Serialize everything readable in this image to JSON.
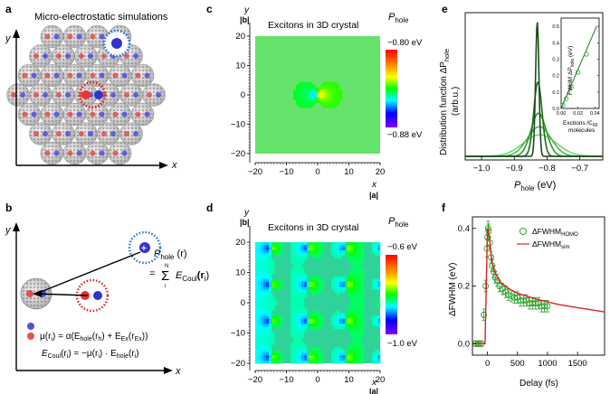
{
  "panels": {
    "a": {
      "label": "a",
      "title": "Micro-electrostatic simulations",
      "x_label": "x",
      "y_label": "y"
    },
    "b": {
      "label": "b",
      "p_hole_label": "P",
      "p_hole_sub": "hole",
      "p_hole_arg": " (r)",
      "sum_eq": "=",
      "sum_symbol": "Σ",
      "sum_top": "N",
      "sum_bottom": "i",
      "sum_term": "E",
      "sum_term_sub": "Coul",
      "sum_term_arg": "(r",
      "sum_term_arg_sub": "i",
      "sum_term_close": ")",
      "mu_eq": "μ(r",
      "mu_eq_i": "i",
      "mu_eq_rest": ") = α(E",
      "mu_eq_hole": "hole",
      "mu_eq_rh": "(r",
      "mu_eq_h": "h",
      "mu_eq_plus": ") + E",
      "mu_eq_ex": "Ex",
      "mu_eq_rex": "(r",
      "mu_eq_ex2": "Ex",
      "mu_eq_end": "))",
      "coul_eq_E": "E",
      "coul_eq_sub": "Coul",
      "coul_eq_mid": "(r",
      "coul_eq_i": "i",
      "coul_eq_rest": ") = −μ(r",
      "coul_eq_i2": "i",
      "coul_eq_dot": ") · E",
      "coul_eq_hole": "hole",
      "coul_eq_ri": "(r",
      "coul_eq_i3": "i",
      "coul_eq_close": ")",
      "x_label": "x",
      "y_label": "y"
    },
    "c": {
      "label": "c",
      "title": "Excitons in 3D crystal",
      "y_axis_label": "y",
      "y_axis_unit": "|b|",
      "x_axis_label": "x",
      "x_axis_unit": "|a|",
      "cbar_title": "P",
      "cbar_title_sub": "hole",
      "cbar_top": "−0.80 eV",
      "cbar_bottom": "−0.88 eV",
      "x_ticks": [
        "−20",
        "−10",
        "0",
        "10",
        "20"
      ],
      "y_ticks": [
        "20",
        "10",
        "0",
        "−10",
        "−20"
      ]
    },
    "d": {
      "label": "d",
      "title": "Excitons in 3D crystal",
      "y_axis_label": "y",
      "y_axis_unit": "|b|",
      "x_axis_label": "x",
      "x_axis_unit": "|a|",
      "cbar_title": "P",
      "cbar_title_sub": "hole",
      "cbar_top": "−0.6 eV",
      "cbar_bottom": "−1.0 eV",
      "x_ticks": [
        "−20",
        "−10",
        "0",
        "10",
        "20"
      ],
      "y_ticks": [
        "20",
        "10",
        "0",
        "−10",
        "−20"
      ]
    },
    "e": {
      "label": "e",
      "ylabel_main": "Distribution function ΔP",
      "ylabel_sub": "hole",
      "ylabel_unit": "(arb.u.)",
      "xlabel_main": "P",
      "xlabel_sub": "hole",
      "xlabel_unit": " (eV)",
      "x_ticks": [
        "−1.0",
        "−0.9",
        "−0.8",
        "−0.7"
      ],
      "inset_y_ticks": [
        "0.5",
        "0.4",
        "0.3",
        "0.2",
        "0.1",
        "0.0"
      ],
      "inset_x_ticks": [
        "0.00",
        "0.02",
        "0.04"
      ],
      "inset_ylabel": "FWHM ΔP",
      "inset_ylabel_sub": "hole",
      "inset_ylabel_unit": " (eV)",
      "inset_xlabel_1": "Excitons /C",
      "inset_xlabel_sub": "60",
      "inset_xlabel_2": "molecules"
    },
    "f": {
      "label": "f",
      "ylabel": "ΔFWHM (eV)",
      "xlabel": "Delay (fs)",
      "y_ticks": [
        "0.4",
        "0.2",
        "0.0"
      ],
      "x_ticks": [
        "0",
        "500",
        "1000",
        "1500"
      ],
      "legend_1": "ΔFWHM",
      "legend_1_sub": "HOMO",
      "legend_2": "ΔFWHM",
      "legend_2_sub": "sim"
    }
  },
  "chart_data": [
    {
      "type": "line",
      "panel": "e",
      "xlim": [
        -1.05,
        -0.63
      ],
      "series": [
        {
          "center": -0.83,
          "fwhm": 0.012,
          "amp": 1.0,
          "color": "#1a4d1a"
        },
        {
          "center": -0.828,
          "fwhm": 0.03,
          "amp": 0.55,
          "color": "#206b20"
        },
        {
          "center": -0.826,
          "fwhm": 0.055,
          "amp": 0.32,
          "color": "#2f9a2f"
        },
        {
          "center": -0.824,
          "fwhm": 0.085,
          "amp": 0.22,
          "color": "#4cba4c"
        },
        {
          "center": -0.822,
          "fwhm": 0.12,
          "amp": 0.16,
          "color": "#77d477"
        }
      ],
      "inset": {
        "type": "scatter",
        "xlim": [
          0,
          0.045
        ],
        "ylim": [
          0,
          0.55
        ],
        "points_x": [
          0.002,
          0.006,
          0.012,
          0.02,
          0.03
        ],
        "points_y": [
          0.02,
          0.06,
          0.13,
          0.22,
          0.33
        ],
        "fit": [
          [
            0,
            0
          ],
          [
            0.042,
            0.5
          ]
        ]
      }
    },
    {
      "type": "scatter",
      "panel": "f",
      "xlim": [
        -250,
        1950
      ],
      "ylim": [
        -0.04,
        0.44
      ],
      "data_x": [
        -200,
        -150,
        -100,
        -60,
        -30,
        -10,
        0,
        10,
        20,
        40,
        60,
        80,
        100,
        130,
        160,
        200,
        250,
        300,
        350,
        400,
        450,
        500,
        550,
        600,
        650,
        700,
        750,
        800,
        850,
        900,
        950,
        1000
      ],
      "data_y": [
        0.0,
        0.0,
        0.0,
        0.1,
        0.2,
        0.33,
        0.37,
        0.4,
        0.39,
        0.35,
        0.3,
        0.27,
        0.25,
        0.23,
        0.22,
        0.2,
        0.19,
        0.18,
        0.17,
        0.165,
        0.16,
        0.16,
        0.15,
        0.15,
        0.15,
        0.14,
        0.14,
        0.14,
        0.14,
        0.13,
        0.13,
        0.13
      ],
      "data_err": [
        0.01,
        0.01,
        0.01,
        0.02,
        0.02,
        0.03,
        0.03,
        0.025,
        0.025,
        0.02,
        0.02,
        0.02,
        0.02,
        0.02,
        0.02,
        0.02,
        0.02,
        0.02,
        0.02,
        0.02,
        0.02,
        0.02,
        0.02,
        0.02,
        0.02,
        0.02,
        0.02,
        0.02,
        0.02,
        0.02,
        0.02,
        0.02
      ],
      "sim_x": [
        -250,
        -100,
        -40,
        -15,
        0,
        10,
        25,
        50,
        80,
        120,
        170,
        230,
        300,
        400,
        500,
        650,
        800,
        1000,
        1200,
        1500,
        1800,
        1950
      ],
      "sim_y": [
        0.0,
        0.0,
        0.0,
        0.25,
        0.39,
        0.4,
        0.38,
        0.33,
        0.28,
        0.25,
        0.23,
        0.21,
        0.2,
        0.185,
        0.175,
        0.165,
        0.155,
        0.145,
        0.135,
        0.125,
        0.115,
        0.11
      ]
    }
  ]
}
